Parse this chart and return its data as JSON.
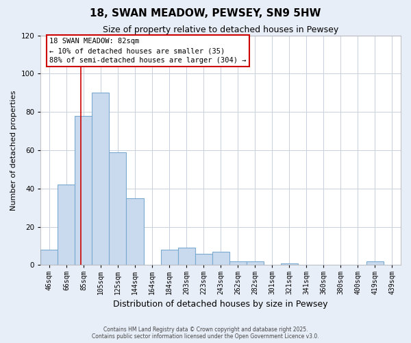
{
  "title": "18, SWAN MEADOW, PEWSEY, SN9 5HW",
  "subtitle": "Size of property relative to detached houses in Pewsey",
  "xlabel": "Distribution of detached houses by size in Pewsey",
  "ylabel": "Number of detached properties",
  "bin_labels": [
    "46sqm",
    "66sqm",
    "85sqm",
    "105sqm",
    "125sqm",
    "144sqm",
    "164sqm",
    "184sqm",
    "203sqm",
    "223sqm",
    "243sqm",
    "262sqm",
    "282sqm",
    "301sqm",
    "321sqm",
    "341sqm",
    "360sqm",
    "380sqm",
    "400sqm",
    "419sqm",
    "439sqm"
  ],
  "bar_values": [
    8,
    42,
    78,
    90,
    59,
    35,
    0,
    8,
    9,
    6,
    7,
    2,
    2,
    0,
    1,
    0,
    0,
    0,
    0,
    2,
    0
  ],
  "bar_color": "#c9d9ee",
  "bar_edge_color": "#7aaacf",
  "vline_color": "#cc0000",
  "vline_position": 1.84,
  "ylim": [
    0,
    120
  ],
  "yticks": [
    0,
    20,
    40,
    60,
    80,
    100,
    120
  ],
  "annotation_text_line1": "18 SWAN MEADOW: 82sqm",
  "annotation_text_line2": "← 10% of detached houses are smaller (35)",
  "annotation_text_line3": "88% of semi-detached houses are larger (304) →",
  "footer_line1": "Contains HM Land Registry data © Crown copyright and database right 2025.",
  "footer_line2": "Contains public sector information licensed under the Open Government Licence v3.0.",
  "background_color": "#e8eef8",
  "plot_background_color": "#ffffff",
  "grid_color": "#c8d0e0",
  "title_fontsize": 11,
  "subtitle_fontsize": 9,
  "xlabel_fontsize": 9,
  "ylabel_fontsize": 8,
  "tick_fontsize": 7,
  "annotation_fontsize": 7.5,
  "footer_fontsize": 5.5
}
